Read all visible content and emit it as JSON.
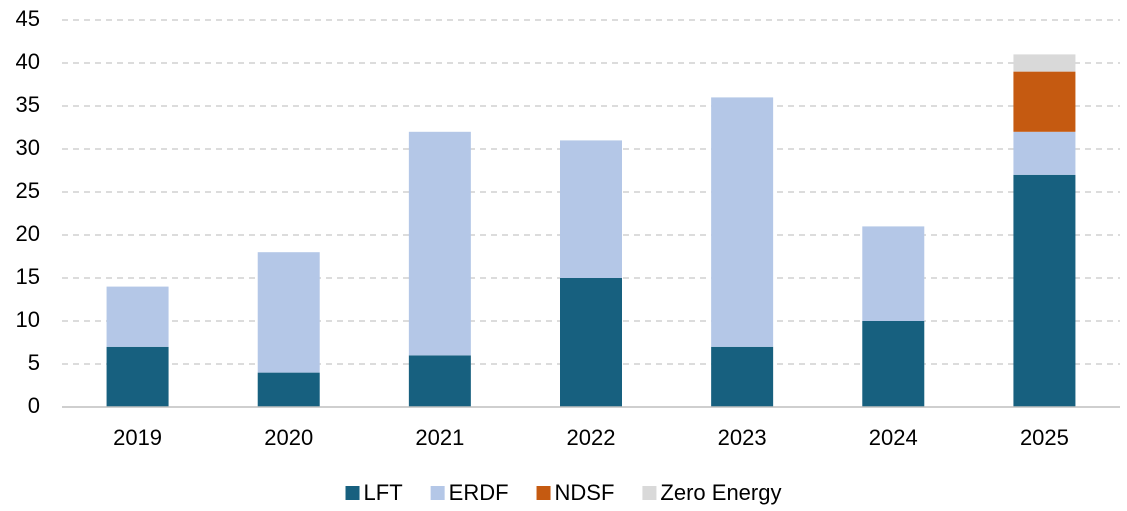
{
  "chart_data": {
    "type": "stacked_bar",
    "categories": [
      "2019",
      "2020",
      "2021",
      "2022",
      "2023",
      "2024",
      "2025"
    ],
    "series": [
      {
        "name": "LFT",
        "color": "#17607f",
        "values": [
          7,
          4,
          6,
          15,
          7,
          10,
          27
        ]
      },
      {
        "name": "ERDF",
        "color": "#b4c7e7",
        "values": [
          7,
          14,
          26,
          16,
          29,
          11,
          5
        ]
      },
      {
        "name": "NDSF",
        "color": "#c55a11",
        "values": [
          0,
          0,
          0,
          0,
          0,
          0,
          7
        ]
      },
      {
        "name": "Zero Energy",
        "color": "#d9d9d9",
        "values": [
          0,
          0,
          0,
          0,
          0,
          0,
          2
        ]
      }
    ],
    "ylim": [
      0,
      45
    ],
    "yticks": [
      0,
      5,
      10,
      15,
      20,
      25,
      30,
      35,
      40,
      45
    ],
    "grid": true,
    "legend": "bottom"
  }
}
